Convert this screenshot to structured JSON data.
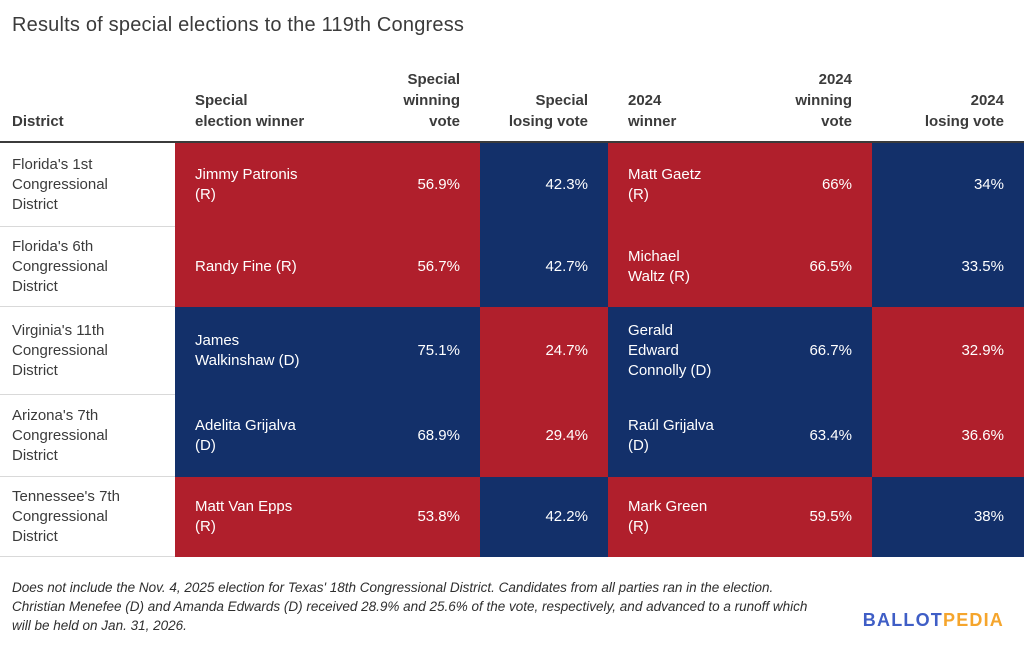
{
  "title": "Results of special elections to the 119th Congress",
  "colors": {
    "republican_red": "#B01F2C",
    "democrat_blue": "#13306A",
    "header_line": "#3B3B3B",
    "row_divider": "#D9D9D9",
    "text_dark": "#3B3B3B",
    "logo_blue": "#3F5EC6",
    "logo_orange": "#F5A52C"
  },
  "table": {
    "headers": {
      "district": "District",
      "special_winner": "Special\nelection winner",
      "special_winning_vote": "Special\nwinning\nvote",
      "special_losing_vote": "Special\nlosing vote",
      "winner_2024": "2024\nwinner",
      "winning_vote_2024": "2024\nwinning\nvote",
      "losing_vote_2024": "2024\nlosing vote"
    },
    "rows": [
      {
        "district": "Florida's 1st\nCongressional\nDistrict",
        "special_winner": "Jimmy Patronis\n(R)",
        "special_winner_party": "R",
        "special_winning_vote": "56.9%",
        "special_losing_vote": "42.3%",
        "special_loser_party": "D",
        "winner_2024": "Matt Gaetz\n(R)",
        "winner_2024_party": "R",
        "winning_vote_2024": "66%",
        "losing_vote_2024": "34%",
        "loser_2024_party": "D"
      },
      {
        "district": "Florida's 6th\nCongressional\nDistrict",
        "special_winner": "Randy Fine (R)",
        "special_winner_party": "R",
        "special_winning_vote": "56.7%",
        "special_losing_vote": "42.7%",
        "special_loser_party": "D",
        "winner_2024": "Michael\nWaltz (R)",
        "winner_2024_party": "R",
        "winning_vote_2024": "66.5%",
        "losing_vote_2024": "33.5%",
        "loser_2024_party": "D"
      },
      {
        "district": "Virginia's 11th\nCongressional\nDistrict",
        "special_winner": "James\nWalkinshaw (D)",
        "special_winner_party": "D",
        "special_winning_vote": "75.1%",
        "special_losing_vote": "24.7%",
        "special_loser_party": "R",
        "winner_2024": "Gerald\nEdward\nConnolly (D)",
        "winner_2024_party": "D",
        "winning_vote_2024": "66.7%",
        "losing_vote_2024": "32.9%",
        "loser_2024_party": "R"
      },
      {
        "district": "Arizona's 7th\nCongressional\nDistrict",
        "special_winner": "Adelita Grijalva\n(D)",
        "special_winner_party": "D",
        "special_winning_vote": "68.9%",
        "special_losing_vote": "29.4%",
        "special_loser_party": "R",
        "winner_2024": "Raúl Grijalva\n(D)",
        "winner_2024_party": "D",
        "winning_vote_2024": "63.4%",
        "losing_vote_2024": "36.6%",
        "loser_2024_party": "R"
      },
      {
        "district": "Tennessee's 7th\nCongressional\nDistrict",
        "special_winner": "Matt Van Epps\n(R)",
        "special_winner_party": "R",
        "special_winning_vote": "53.8%",
        "special_losing_vote": "42.2%",
        "special_loser_party": "D",
        "winner_2024": "Mark Green\n(R)",
        "winner_2024_party": "R",
        "winning_vote_2024": "59.5%",
        "losing_vote_2024": "38%",
        "loser_2024_party": "D"
      }
    ]
  },
  "footnote": {
    "lines": [
      "Does not include the Nov. 4, 2025 election for Texas' 18th Congressional District. Candidates from all parties ran in the election.",
      "Christian Menefee (D) and Amanda Edwards (D) received 28.9% and 25.6% of the vote, respectively, and advanced to a runoff which",
      "will be held on Jan. 31, 2026."
    ]
  },
  "logo": {
    "ballot": "BALLOT",
    "pedia": "PEDIA"
  },
  "chart_data": {
    "type": "table",
    "title": "Results of special elections to the 119th Congress",
    "columns": [
      "District",
      "Special election winner",
      "Special winning vote",
      "Special losing vote",
      "2024 winner",
      "2024 winning vote",
      "2024 losing vote"
    ],
    "rows": [
      [
        "Florida's 1st Congressional District",
        "Jimmy Patronis (R)",
        "56.9%",
        "42.3%",
        "Matt Gaetz (R)",
        "66%",
        "34%"
      ],
      [
        "Florida's 6th Congressional District",
        "Randy Fine (R)",
        "56.7%",
        "42.7%",
        "Michael Waltz (R)",
        "66.5%",
        "33.5%"
      ],
      [
        "Virginia's 11th Congressional District",
        "James Walkinshaw (D)",
        "75.1%",
        "24.7%",
        "Gerald Edward Connolly (D)",
        "66.7%",
        "32.9%"
      ],
      [
        "Arizona's 7th Congressional District",
        "Adelita Grijalva (D)",
        "68.9%",
        "29.4%",
        "Raúl Grijalva (D)",
        "63.4%",
        "36.6%"
      ],
      [
        "Tennessee's 7th Congressional District",
        "Matt Van Epps (R)",
        "53.8%",
        "42.2%",
        "Mark Green (R)",
        "59.5%",
        "38%"
      ]
    ],
    "legend": "Cell background indicates party: Republican red #B01F2C, Democratic blue #13306A",
    "source": "Ballotpedia"
  }
}
